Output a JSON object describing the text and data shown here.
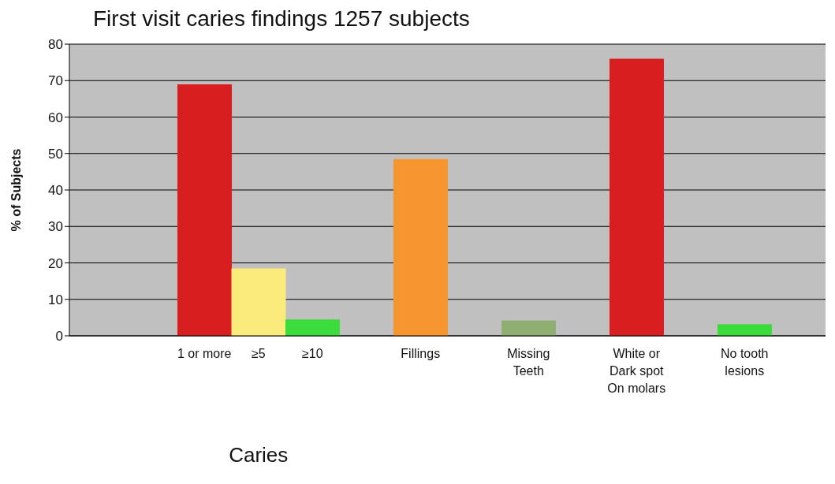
{
  "chart_data": {
    "type": "bar",
    "title": "First visit caries findings 1257 subjects",
    "ylabel": "% of Subjects",
    "categories": [
      null,
      null,
      "1 or more",
      "≥5",
      "≥10",
      null,
      "Fillings",
      null,
      "Missing Teeth",
      null,
      "White or Dark spot On molars",
      null,
      "No tooth lesions",
      null
    ],
    "values": [
      null,
      null,
      69,
      18.5,
      4.5,
      null,
      48.5,
      null,
      4.2,
      null,
      76,
      null,
      3.2,
      null
    ],
    "colors": [
      "#d81e1e",
      "#d81e1e",
      "#d81e1e",
      "#fbeb7a",
      "#3ddc3d",
      "#d81e1e",
      "#f7962f",
      "#d81e1e",
      "#8fae72",
      "#d81e1e",
      "#d81e1e",
      "#d81e1e",
      "#3ddc3d",
      "#d81e1e"
    ],
    "ylim": [
      0,
      80
    ],
    "yticks": [
      0,
      10,
      20,
      30,
      40,
      50,
      60,
      70,
      80
    ],
    "grid": "y",
    "annotations": [
      "Caries"
    ]
  }
}
